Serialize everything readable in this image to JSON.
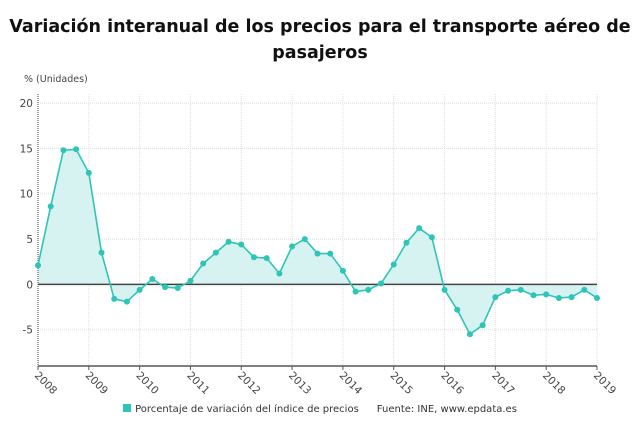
{
  "chart_data": {
    "type": "area",
    "title": "Variación interanual de los precios para el transporte aéreo de pasajeros",
    "ylabel": "% (Unidades)",
    "xlabel": "",
    "ylim": [
      -9,
      21
    ],
    "xlim": [
      2008,
      2019
    ],
    "yticks": [
      -5,
      0,
      5,
      10,
      15,
      20
    ],
    "xticks": [
      2008,
      2009,
      2010,
      2011,
      2012,
      2013,
      2014,
      2015,
      2016,
      2017,
      2018,
      2019
    ],
    "grid": true,
    "legend_position": "bottom",
    "series": [
      {
        "name": "Porcentaje de variación del índice de precios",
        "color": "#2ec4b6",
        "x": [
          2008,
          2008.25,
          2008.5,
          2008.75,
          2009,
          2009.25,
          2009.5,
          2009.75,
          2010,
          2010.25,
          2010.5,
          2010.75,
          2011,
          2011.25,
          2011.5,
          2011.75,
          2012,
          2012.25,
          2012.5,
          2012.75,
          2013,
          2013.25,
          2013.5,
          2013.75,
          2014,
          2014.25,
          2014.5,
          2014.75,
          2015,
          2015.25,
          2015.5,
          2015.75,
          2016,
          2016.25,
          2016.5,
          2016.75,
          2017,
          2017.25,
          2017.5,
          2017.75,
          2018,
          2018.25,
          2018.5,
          2018.75,
          2019
        ],
        "values": [
          2.1,
          8.6,
          14.8,
          14.9,
          12.3,
          3.5,
          -1.6,
          -1.9,
          -0.6,
          0.6,
          -0.3,
          -0.4,
          0.4,
          2.3,
          3.5,
          4.7,
          4.4,
          3.0,
          2.9,
          1.2,
          4.2,
          5.0,
          3.4,
          3.4,
          1.5,
          -0.8,
          -0.6,
          0.1,
          2.2,
          4.6,
          6.2,
          5.2,
          -0.6,
          -2.8,
          -5.5,
          -4.5,
          -1.4,
          -0.7,
          -0.6,
          -1.2,
          -1.1,
          -1.5,
          -1.4,
          -0.6,
          -1.5
        ]
      }
    ],
    "source": "Fuente: INE, www.epdata.es"
  }
}
